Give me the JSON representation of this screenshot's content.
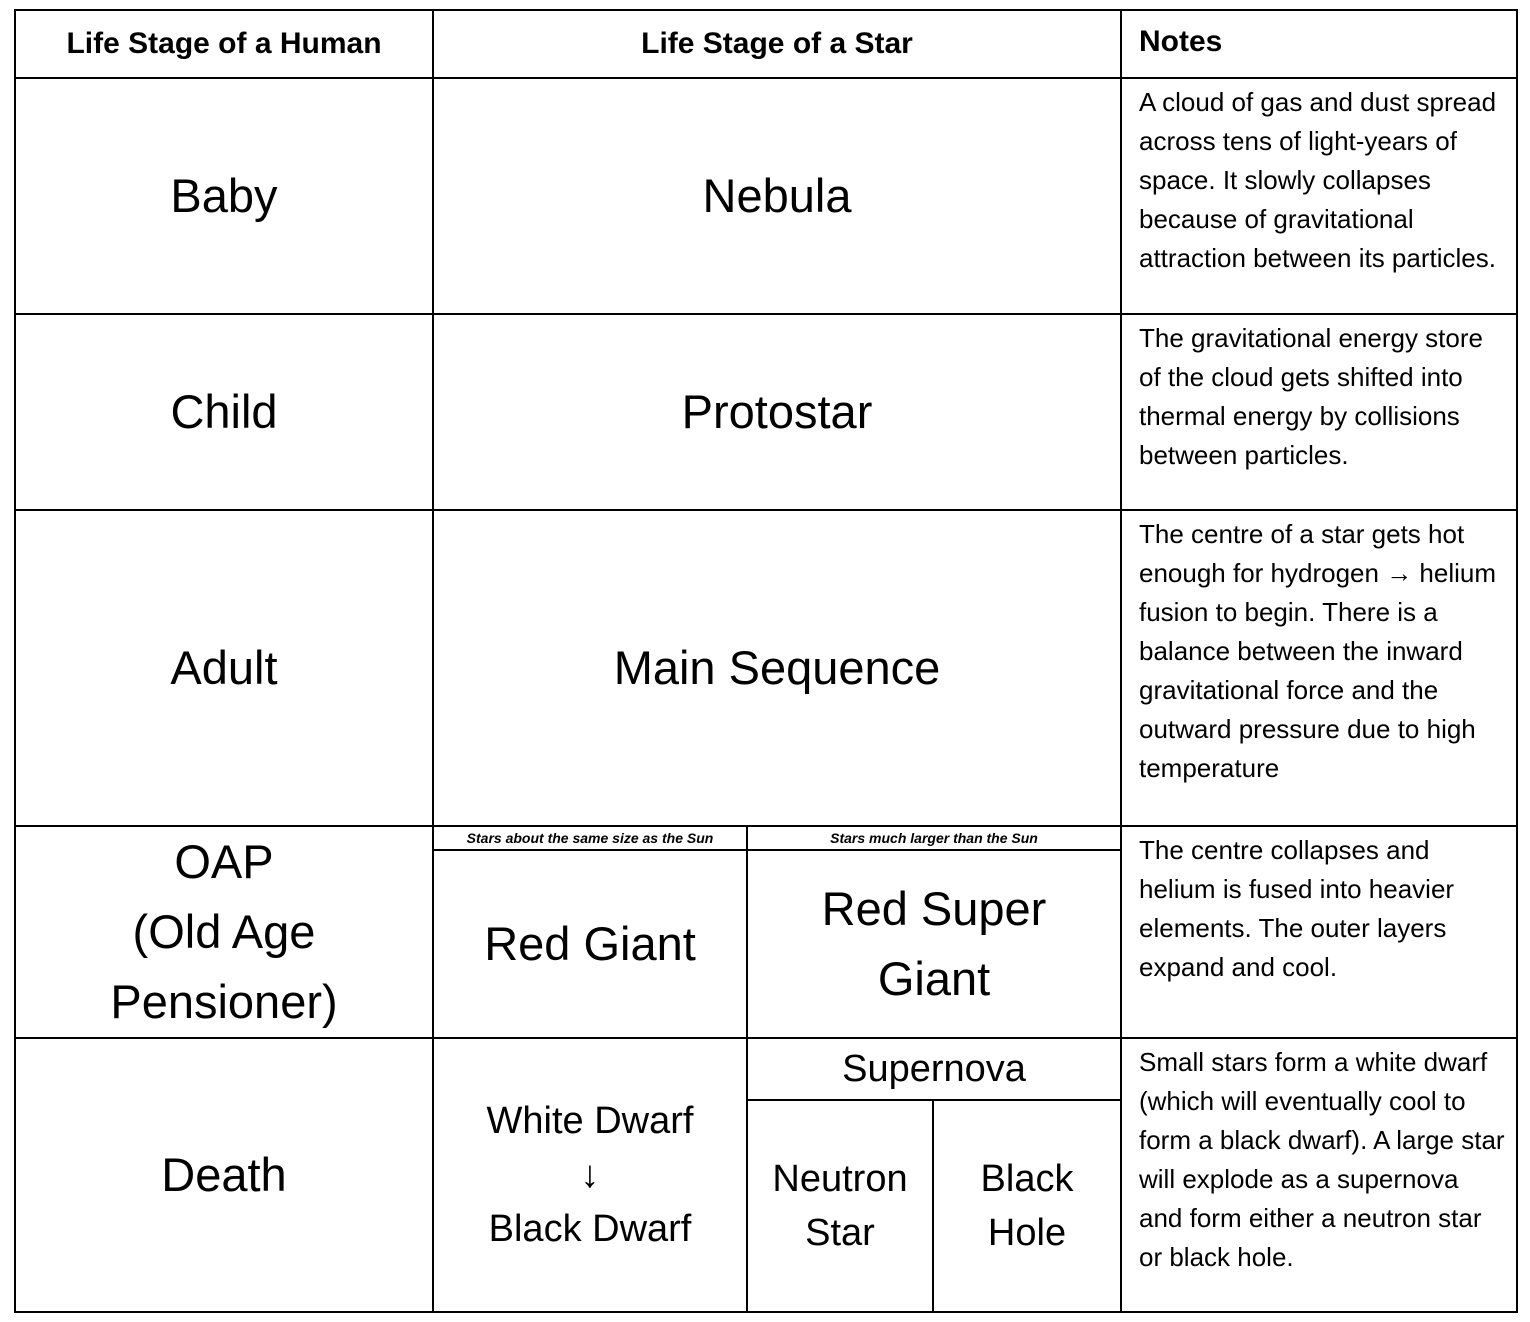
{
  "table": {
    "headers": [
      "Life Stage of a Human",
      "Life Stage of a Star",
      "Notes"
    ],
    "rows": [
      {
        "human": "Baby",
        "star": "Nebula",
        "notes": "A cloud of gas and dust spread across tens of light-years of space. It slowly collapses because of gravitational attraction between its particles."
      },
      {
        "human": "Child",
        "star": "Protostar",
        "notes": "The gravitational energy store of the cloud gets shifted into thermal energy by collisions between particles."
      },
      {
        "human": "Adult",
        "star": "Main Sequence",
        "notes": "The centre of a star gets hot enough for hydrogen → helium fusion to begin. There is a balance between the inward gravitational force and the outward pressure due to high temperature"
      },
      {
        "human": [
          "OAP",
          "(Old Age",
          "Pensioner)"
        ],
        "small_star_label": "Stars about the same size as the Sun",
        "small_star": "Red Giant",
        "large_star_label": "Stars much larger than the Sun",
        "large_star": [
          "Red Super",
          "Giant"
        ],
        "notes": "The centre collapses and helium is fused into heavier elements. The outer layers expand and cool."
      },
      {
        "human": "Death",
        "small_star": [
          "White Dwarf",
          "↓",
          "Black Dwarf"
        ],
        "large_star": "Supernova",
        "neutron": [
          "Neutron",
          "Star"
        ],
        "black_hole": [
          "Black",
          "Hole"
        ],
        "notes": "Small stars form a white dwarf (which will eventually cool to form a black dwarf). A large star will explode as a supernova and form either a neutron star or black hole."
      }
    ]
  }
}
